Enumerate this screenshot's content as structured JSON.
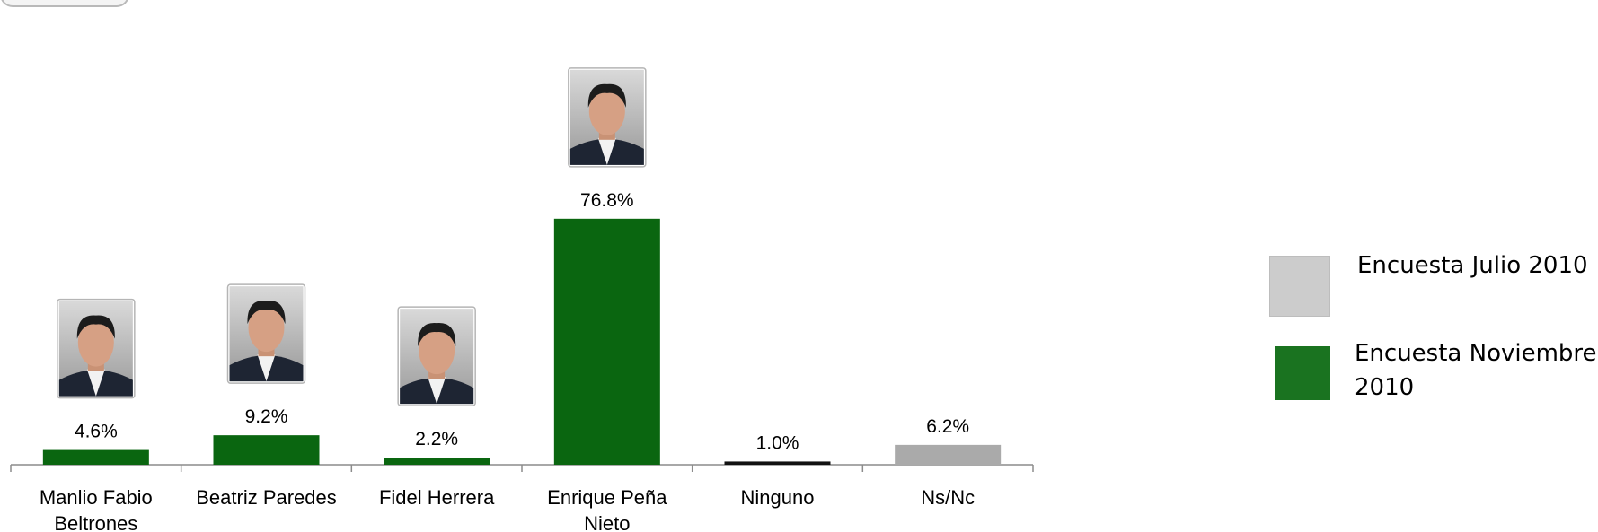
{
  "chart_data": {
    "type": "bar",
    "title": "",
    "xlabel": "",
    "ylabel": "",
    "ylim": [
      0,
      85
    ],
    "grid": false,
    "legend_position": "right",
    "categories": [
      {
        "label": "Manlio Fabio Beltrones",
        "lines": [
          "Manlio Fabio",
          "Beltrones"
        ]
      },
      {
        "label": "Beatriz Paredes",
        "lines": [
          "Beatriz Paredes"
        ]
      },
      {
        "label": "Fidel Herrera",
        "lines": [
          "Fidel Herrera"
        ]
      },
      {
        "label": "Enrique Peña Nieto",
        "lines": [
          "Enrique Peña",
          "Nieto"
        ]
      },
      {
        "label": "Ninguno",
        "lines": [
          "Ninguno"
        ]
      },
      {
        "label": "Ns/Nc",
        "lines": [
          "Ns/Nc"
        ]
      }
    ],
    "values": [
      4.6,
      9.2,
      2.2,
      76.8,
      1.0,
      6.2
    ],
    "value_labels": [
      "4.6%",
      "9.2%",
      "2.2%",
      "76.8%",
      "1.0%",
      "6.2%"
    ],
    "bar_colors": [
      "#0a6610",
      "#0a6610",
      "#0a6610",
      "#0a6610",
      "#111111",
      "#aaaaaa"
    ],
    "photos": [
      "portrait-photo",
      "portrait-photo",
      "portrait-photo",
      "portrait-photo",
      null,
      null
    ]
  },
  "legend": {
    "items": [
      {
        "label": "Encuesta Julio 2010",
        "color": "#cccccc"
      },
      {
        "label": "Encuesta Noviembre 2010",
        "color": "#1a7320"
      }
    ]
  }
}
